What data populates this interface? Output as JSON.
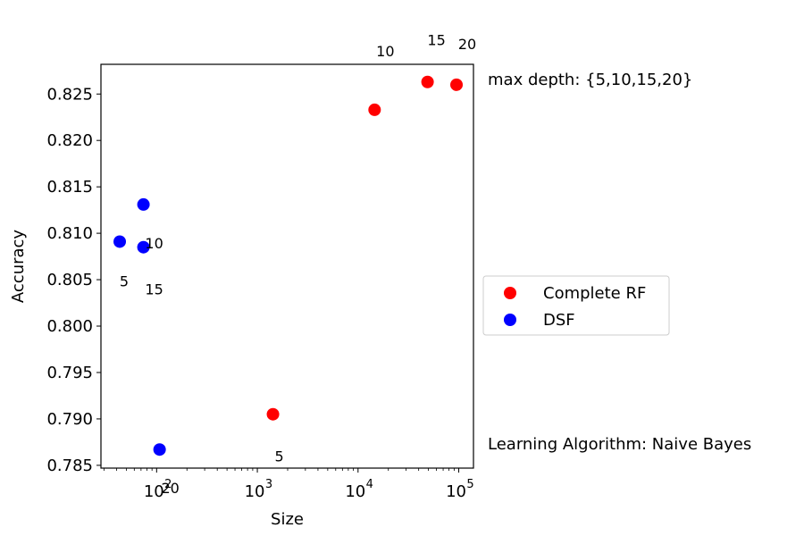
{
  "chart_data": {
    "type": "scatter",
    "title": "",
    "xlabel": "Size",
    "ylabel": "Accuracy",
    "xscale": "log",
    "xlim": [
      28,
      140000
    ],
    "ylim": [
      0.7847,
      0.8282
    ],
    "x_ticks": [
      {
        "value": 100,
        "base": "10",
        "exp": "2"
      },
      {
        "value": 1000,
        "base": "10",
        "exp": "3"
      },
      {
        "value": 10000,
        "base": "10",
        "exp": "4"
      },
      {
        "value": 100000,
        "base": "10",
        "exp": "5"
      }
    ],
    "y_ticks": [
      {
        "value": 0.785,
        "label": "0.785"
      },
      {
        "value": 0.79,
        "label": "0.790"
      },
      {
        "value": 0.795,
        "label": "0.795"
      },
      {
        "value": 0.8,
        "label": "0.800"
      },
      {
        "value": 0.805,
        "label": "0.805"
      },
      {
        "value": 0.81,
        "label": "0.810"
      },
      {
        "value": 0.815,
        "label": "0.815"
      },
      {
        "value": 0.82,
        "label": "0.820"
      },
      {
        "value": 0.825,
        "label": "0.825"
      }
    ],
    "series": [
      {
        "name": "Complete RF",
        "color": "#ff0000",
        "points": [
          {
            "x": 1430,
            "y": 0.7905,
            "label": "5"
          },
          {
            "x": 14600,
            "y": 0.8233,
            "label": "10"
          },
          {
            "x": 49000,
            "y": 0.8263,
            "label": "15"
          },
          {
            "x": 95000,
            "y": 0.826,
            "label": "20"
          }
        ]
      },
      {
        "name": "DSF",
        "color": "#0000ff",
        "points": [
          {
            "x": 43,
            "y": 0.8091,
            "label": "5"
          },
          {
            "x": 74,
            "y": 0.8131,
            "label": "10"
          },
          {
            "x": 74,
            "y": 0.8085,
            "label": "15"
          },
          {
            "x": 107,
            "y": 0.7867,
            "label": "20"
          }
        ]
      }
    ],
    "legend": {
      "placement": "right"
    },
    "annotations": [
      {
        "text": "max depth: {5,10,15,20}",
        "placement": "top-right"
      },
      {
        "text": "Learning Algorithm: Naive Bayes",
        "placement": "bottom-right"
      }
    ],
    "grid": false
  }
}
